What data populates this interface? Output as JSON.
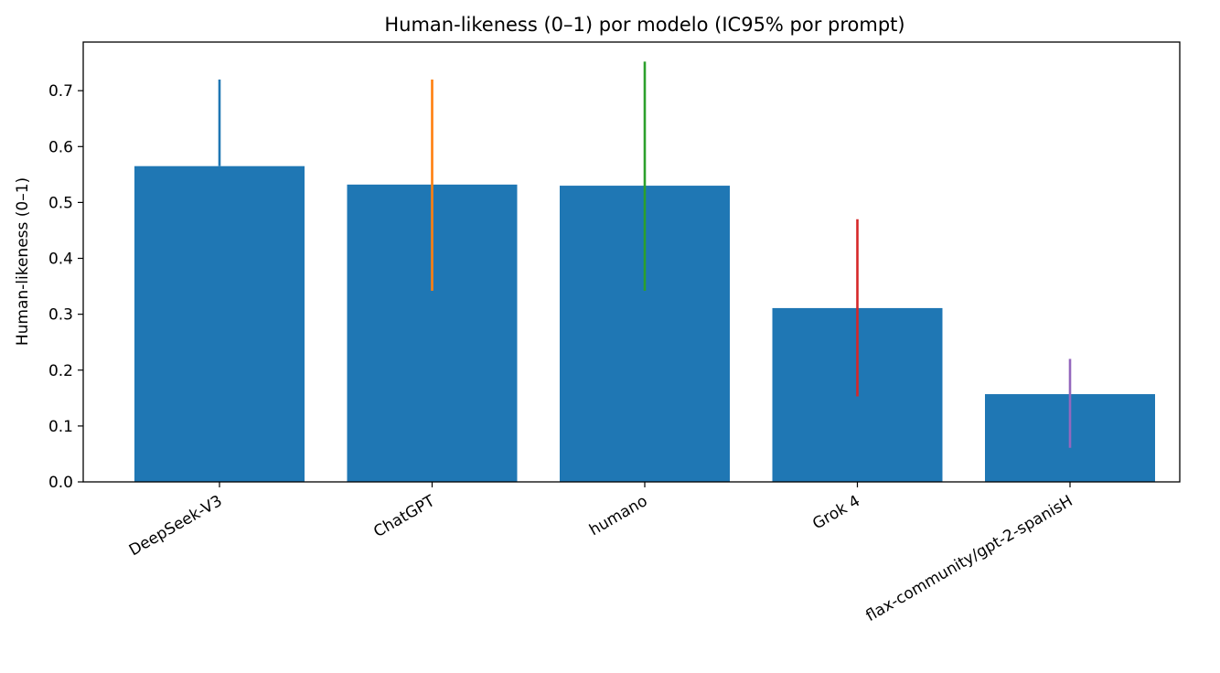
{
  "chart_data": {
    "type": "bar",
    "title": "Human-likeness (0–1) por modelo (IC95% por prompt)",
    "xlabel": "",
    "ylabel": "Human-likeness (0–1)",
    "categories": [
      "DeepSeek-V3",
      "ChatGPT",
      "humano",
      "Grok 4",
      "flax-community/gpt-2-spanisH"
    ],
    "values": [
      0.565,
      0.532,
      0.53,
      0.311,
      0.157
    ],
    "ci_low": [
      0.565,
      0.342,
      0.342,
      0.153,
      0.061
    ],
    "ci_high": [
      0.72,
      0.72,
      0.752,
      0.47,
      0.22
    ],
    "bar_color": "#1f77b4",
    "error_bar_colors": [
      "#1f77b4",
      "#ff7f0e",
      "#2ca02c",
      "#d62728",
      "#9467bd"
    ],
    "ylim": [
      0,
      0.787
    ],
    "yticks": [
      "0.0",
      "0.1",
      "0.2",
      "0.3",
      "0.4",
      "0.5",
      "0.6",
      "0.7"
    ],
    "grid": false,
    "legend": "none"
  }
}
